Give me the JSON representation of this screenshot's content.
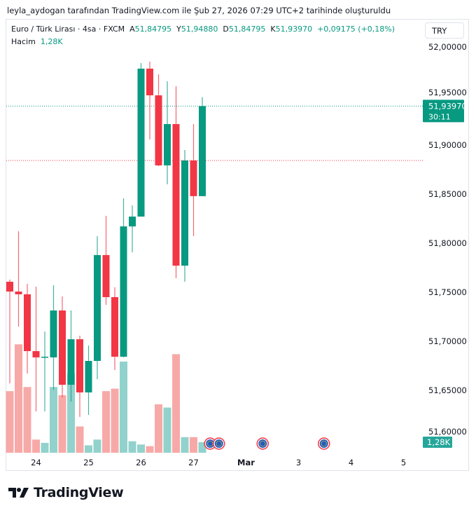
{
  "caption": "leyla_aydogan tarafından TradingView.com ile Şub 27, 2026 07:29 UTC+2 tarihinde oluşturuldu",
  "legend": {
    "symbol": "Euro / Türk Lirası · 4sa · FXCM",
    "open_label": "A",
    "open": "51,84795",
    "high_label": "Y",
    "high": "51,94880",
    "low_label": "D",
    "low": "51,84795",
    "close_label": "K",
    "close": "51,93970",
    "change": "+0,09175 (+0,18%)",
    "volume_label": "Hacim",
    "volume": "1,28K"
  },
  "currency_button": "TRY",
  "last_price": {
    "price": "51,93970",
    "countdown": "30:11",
    "volume": "1,28K"
  },
  "branding": "TradingView",
  "colors": {
    "up": "#089981",
    "down": "#f23645",
    "up_volume": "#92d2cc",
    "down_volume": "#f7a9a7",
    "event": "#1e5bc6"
  },
  "chart_data": {
    "type": "candlestick",
    "title": "Euro / Türk Lirası · 4sa · FXCM",
    "ylim": [
      51.59,
      52.01
    ],
    "yticks": [
      "52,00000",
      "51,95000",
      "51,90000",
      "51,85000",
      "51,80000",
      "51,75000",
      "51,70000",
      "51,65000",
      "51,60000"
    ],
    "ytick_values": [
      52.0,
      51.95,
      51.9,
      51.85,
      51.8,
      51.75,
      51.7,
      51.65,
      51.6
    ],
    "xticks": [
      "24",
      "25",
      "26",
      "27",
      "Mar",
      "3",
      "4",
      "5"
    ],
    "xtick_candle_index": [
      3,
      9,
      15,
      21,
      27,
      33,
      39,
      45
    ],
    "price_lines": [
      {
        "value": 51.9397,
        "color": "#089981"
      },
      {
        "value": 51.8843,
        "color": "#f23645"
      }
    ],
    "event_candle_index": [
      22.9,
      23.9,
      28.9,
      35.9
    ],
    "candles": [
      [
        51.7607,
        51.7629,
        51.6571,
        51.7507
      ],
      [
        51.7507,
        51.8121,
        51.715,
        51.7479
      ],
      [
        51.7479,
        51.7586,
        51.6671,
        51.69
      ],
      [
        51.69,
        51.7557,
        51.6286,
        51.6836
      ],
      [
        51.6836,
        51.71,
        51.6286,
        51.6843
      ],
      [
        51.6836,
        51.7571,
        51.6507,
        51.7314
      ],
      [
        51.7314,
        51.7457,
        51.6429,
        51.6557
      ],
      [
        51.6557,
        51.7314,
        51.6386,
        51.7021
      ],
      [
        51.7021,
        51.7057,
        51.6229,
        51.6479
      ],
      [
        51.6479,
        51.6957,
        51.625,
        51.68
      ],
      [
        51.68,
        51.8071,
        51.6614,
        51.7879
      ],
      [
        51.7879,
        51.8279,
        51.7371,
        51.745
      ],
      [
        51.745,
        51.755,
        51.6707,
        51.6843
      ],
      [
        51.6843,
        51.8457,
        51.6836,
        51.8171
      ],
      [
        51.8171,
        51.8386,
        51.7907,
        51.8271
      ],
      [
        51.8271,
        51.9836,
        51.8271,
        51.9779
      ],
      [
        51.9779,
        51.985,
        51.9057,
        51.9507
      ],
      [
        51.9507,
        51.9721,
        51.8786,
        51.8793
      ],
      [
        51.8793,
        51.965,
        51.86,
        51.9214
      ],
      [
        51.9214,
        51.96,
        51.7643,
        51.7771
      ],
      [
        51.7771,
        51.895,
        51.7607,
        51.8843
      ],
      [
        51.8843,
        51.9214,
        51.8071,
        51.84795
      ],
      [
        51.84795,
        51.9488,
        51.84795,
        51.9397
      ]
    ],
    "volume_k": [
      7.5,
      13.2,
      8.0,
      1.6,
      1.2,
      8.0,
      7.0,
      9.6,
      3.2,
      0.9,
      1.6,
      7.5,
      7.8,
      11.1,
      1.4,
      1.0,
      0.8,
      5.9,
      5.5,
      12.0,
      1.9,
      1.9,
      1.28
    ]
  }
}
